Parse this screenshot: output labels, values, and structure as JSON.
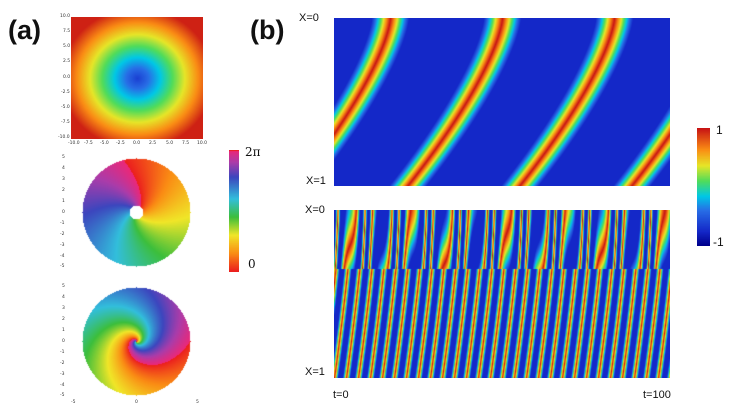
{
  "labels": {
    "a": "(a)",
    "b": "(b)"
  },
  "panel_a": {
    "top_plot": {
      "xticks": [
        "-10.0",
        "-7.5",
        "-5.0",
        "-2.5",
        "0.0",
        "2.5",
        "5.0",
        "7.5",
        "10.0"
      ],
      "yticks": [
        "10.0",
        "7.5",
        "5.0",
        "2.5",
        "0.0",
        "-2.5",
        "-5.0",
        "-7.5",
        "-10.0"
      ]
    },
    "middle_plot": {
      "yticks": [
        "5",
        "4",
        "3",
        "2",
        "1",
        "0",
        "-1",
        "-2",
        "-3",
        "-4",
        "-5"
      ]
    },
    "bottom_plot": {
      "yticks": [
        "5",
        "4",
        "3",
        "2",
        "1",
        "0",
        "-1",
        "-2",
        "-3",
        "-4",
        "-5"
      ],
      "xticks": [
        "-5",
        "0",
        "5"
      ]
    },
    "phase_colorbar": {
      "max_label": "2π",
      "min_label": "0"
    }
  },
  "panel_b": {
    "top_heatmap": {
      "y_top": "X=0",
      "y_bottom": "X=1"
    },
    "bottom_heatmap": {
      "y_top": "X=0",
      "y_bottom": "X=1",
      "x_left": "t=0",
      "x_right": "t=100"
    },
    "colorbar": {
      "max_label": "1",
      "min_label": "-1"
    }
  },
  "colors": {
    "jet": "blue-cyan-green-yellow-red",
    "phase": "red-orange-yellow-green-cyan-blue-magenta"
  }
}
